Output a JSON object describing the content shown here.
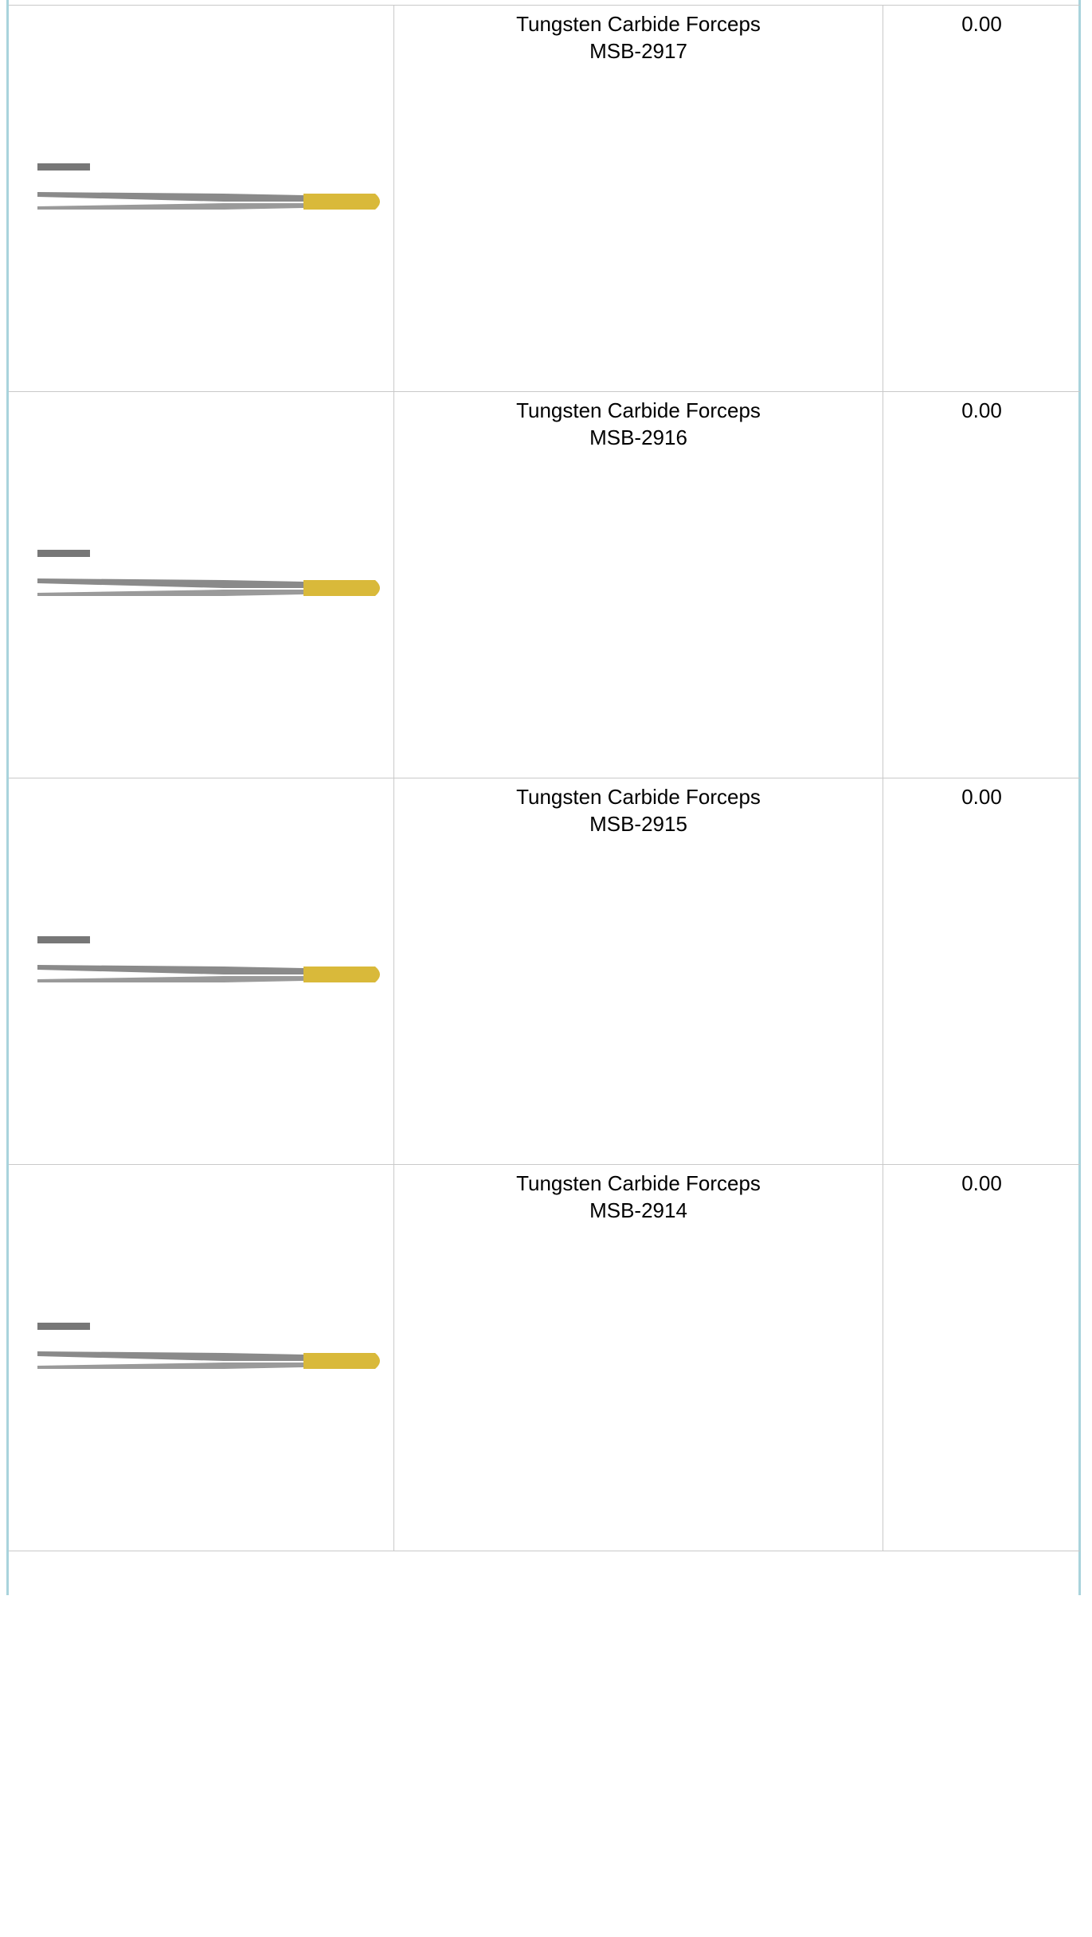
{
  "table": {
    "rows": [
      {
        "name": "Tungsten Carbide Forceps",
        "code": "MSB-2917",
        "price": "0.00"
      },
      {
        "name": "Tungsten Carbide Forceps",
        "code": "MSB-2916",
        "price": "0.00"
      },
      {
        "name": "Tungsten Carbide Forceps",
        "code": "MSB-2915",
        "price": "0.00"
      },
      {
        "name": "Tungsten Carbide Forceps",
        "code": "MSB-2914",
        "price": "0.00"
      }
    ]
  }
}
